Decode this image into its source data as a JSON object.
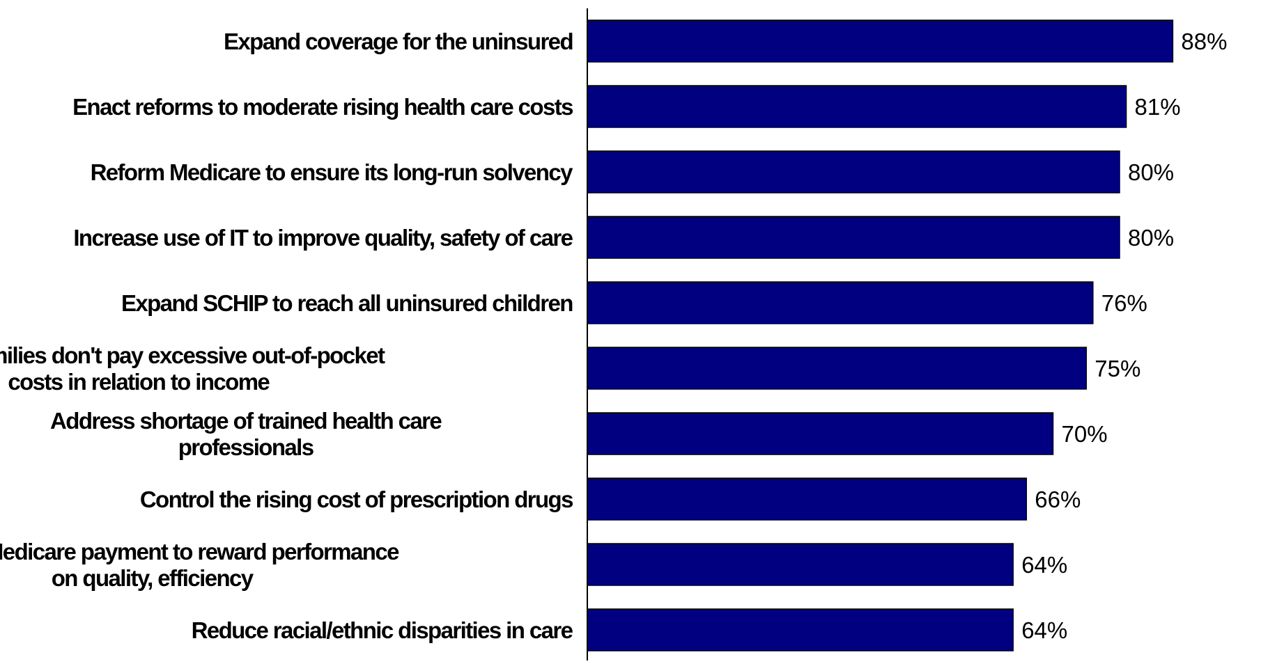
{
  "chart_data": {
    "type": "bar",
    "orientation": "horizontal",
    "categories": [
      [
        "Expand coverage for the uninsured"
      ],
      [
        "Enact reforms to moderate rising health care costs"
      ],
      [
        "Reform Medicare to ensure its long-run solvency"
      ],
      [
        "Increase use of IT to improve quality, safety of care"
      ],
      [
        "Expand SCHIP to reach all uninsured children"
      ],
      [
        "Ensure families don't pay excessive out-of-pocket",
        "costs in relation to income"
      ],
      [
        "Address shortage of trained health care",
        "professionals"
      ],
      [
        "Control the rising cost of prescription drugs"
      ],
      [
        "Reform Medicare payment to reward performance",
        "on quality, efficiency"
      ],
      [
        "Reduce racial/ethnic disparities in care"
      ]
    ],
    "values": [
      88,
      81,
      80,
      80,
      76,
      75,
      70,
      66,
      64,
      64
    ],
    "value_labels": [
      "88%",
      "81%",
      "80%",
      "80%",
      "76%",
      "75%",
      "70%",
      "66%",
      "64%",
      "64%"
    ],
    "bar_color": "#000080",
    "bar_border_color": "#000000",
    "xlim": [
      0,
      100
    ],
    "grid": false,
    "legend": "none",
    "title": "",
    "xlabel": "",
    "ylabel": ""
  }
}
